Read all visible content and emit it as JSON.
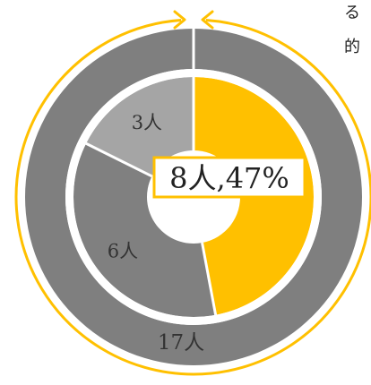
{
  "caption_fragment": [
    "る",
    "的"
  ],
  "colors": {
    "accent": "#ffc000",
    "outer": "#7f7f7f",
    "inner_dark": "#808080",
    "inner_light": "#a5a5a5",
    "divider": "#ffffff"
  },
  "chart_data": {
    "type": "pie",
    "variant": "nested-donut",
    "title": "",
    "rings": [
      {
        "name": "",
        "slices": [
          {
            "label": "17人",
            "value": 17,
            "color": "#7f7f7f"
          }
        ]
      },
      {
        "name": "",
        "slices": [
          {
            "label": "8人,47%",
            "value": 8,
            "color": "#ffc000",
            "highlight": true
          },
          {
            "label": "6人",
            "value": 6,
            "color": "#808080"
          },
          {
            "label": "3人",
            "value": 3,
            "color": "#a5a5a5"
          }
        ]
      }
    ],
    "annotation": "circular arrow around outer ring"
  }
}
